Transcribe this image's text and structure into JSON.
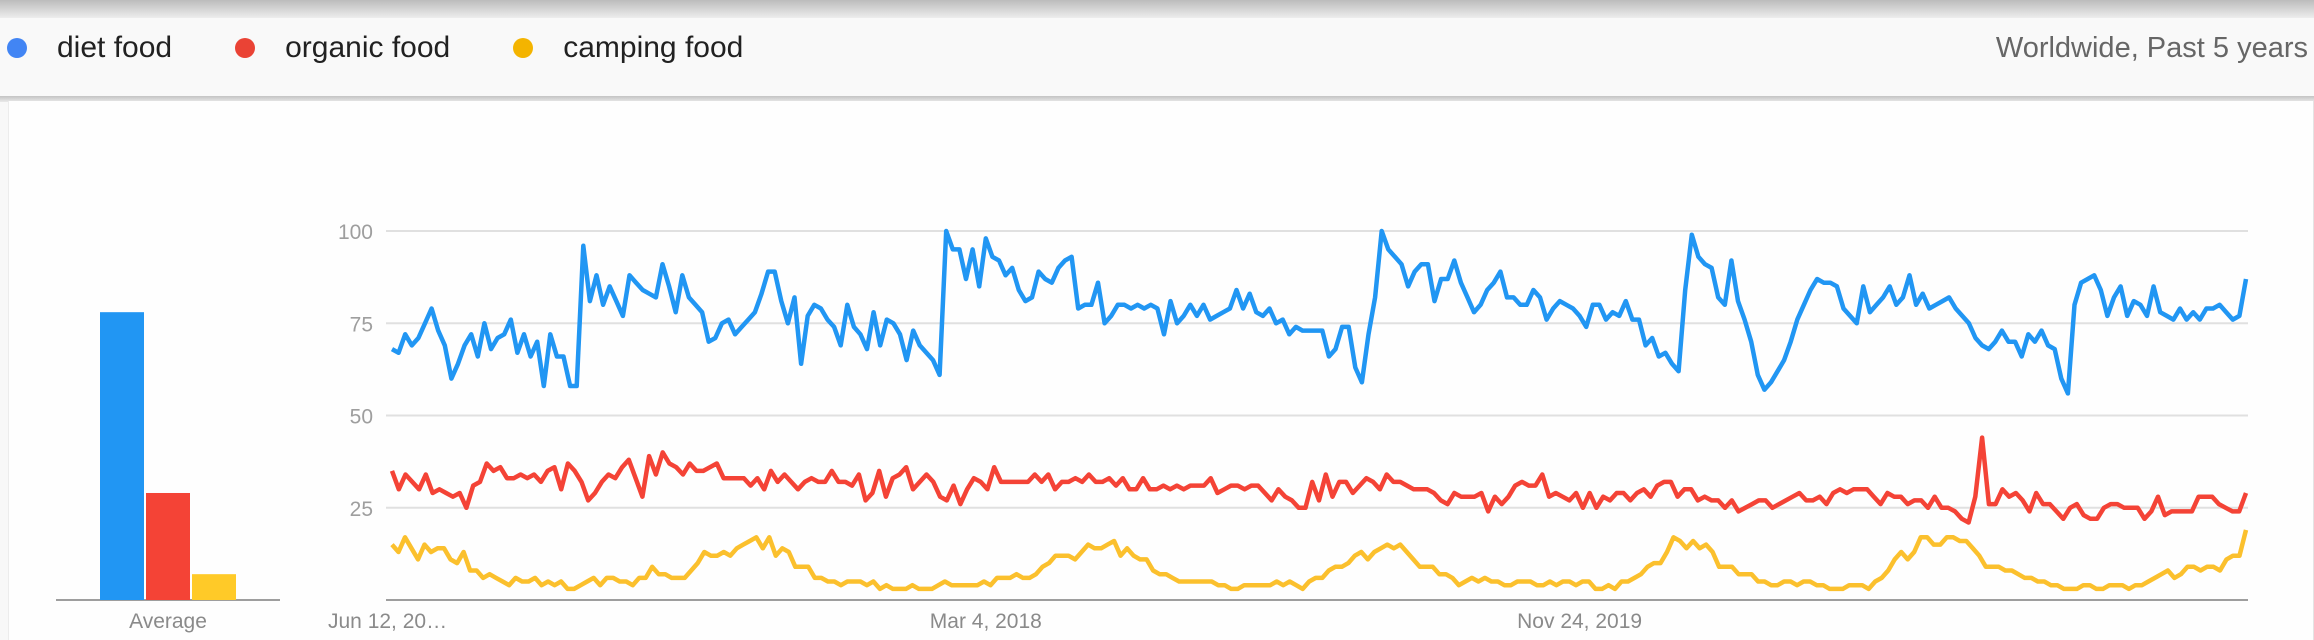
{
  "header": {
    "legend": [
      {
        "label": "diet food",
        "color": "#4285F4"
      },
      {
        "label": "organic food",
        "color": "#EA4335"
      },
      {
        "label": "camping food",
        "color": "#F4B400"
      }
    ],
    "scope": "Worldwide, Past 5 years"
  },
  "average_panel": {
    "label": "Average"
  },
  "chart_data": [
    {
      "type": "bar",
      "title": "Average",
      "categories": [
        "diet food",
        "organic food",
        "camping food"
      ],
      "values": [
        78,
        29,
        7
      ],
      "colors": [
        "#2196F3",
        "#F44336",
        "#FFCA28"
      ],
      "ylim": [
        0,
        100
      ]
    },
    {
      "type": "line",
      "title": "Interest over time",
      "xlabel": "",
      "ylabel": "",
      "ylim": [
        0,
        100
      ],
      "yticks": [
        25,
        50,
        75,
        100
      ],
      "grid": true,
      "legend_position": "top",
      "x_tick_labels": [
        {
          "label": "Jun 12, 20…",
          "index": 0
        },
        {
          "label": "Mar 4, 2018",
          "index": 90
        },
        {
          "label": "Nov 24, 2019",
          "index": 180
        }
      ],
      "x_start": "Jun 12, 2016",
      "x_step": "1 week",
      "series": [
        {
          "name": "diet food",
          "color": "#2196F3",
          "values": [
            68,
            67,
            72,
            69,
            71,
            75,
            79,
            73,
            69,
            60,
            64,
            69,
            72,
            66,
            75,
            68,
            71,
            72,
            76,
            67,
            72,
            66,
            70,
            58,
            72,
            66,
            66,
            58,
            58,
            96,
            81,
            88,
            80,
            85,
            81,
            77,
            88,
            86,
            84,
            83,
            82,
            91,
            85,
            78,
            88,
            82,
            80,
            78,
            70,
            71,
            75,
            76,
            72,
            74,
            76,
            78,
            83,
            89,
            89,
            81,
            75,
            82,
            64,
            77,
            80,
            79,
            76,
            74,
            69,
            80,
            74,
            72,
            68,
            78,
            69,
            76,
            75,
            72,
            65,
            73,
            69,
            67,
            65,
            61,
            100,
            95,
            95,
            87,
            95,
            85,
            98,
            93,
            92,
            88,
            90,
            84,
            81,
            82,
            89,
            87,
            86,
            90,
            92,
            93,
            79,
            80,
            80,
            86,
            75,
            77,
            80,
            80,
            79,
            80,
            79,
            80,
            79,
            72,
            81,
            75,
            77,
            80,
            77,
            80,
            76,
            77,
            78,
            79,
            84,
            79,
            83,
            78,
            77,
            79,
            75,
            76,
            72,
            74,
            73,
            73,
            73,
            73,
            66,
            68,
            74,
            74,
            63,
            59,
            72,
            82,
            100,
            95,
            93,
            91,
            85,
            89,
            91,
            91,
            81,
            87,
            87,
            92,
            86,
            82,
            78,
            80,
            84,
            86,
            89,
            82,
            82,
            80,
            80,
            84,
            82,
            76,
            79,
            81,
            80,
            79,
            77,
            74,
            80,
            80,
            76,
            78,
            77,
            81,
            76,
            76,
            69,
            71,
            66,
            67,
            64,
            62,
            84,
            99,
            93,
            91,
            90,
            82,
            80,
            92,
            81,
            76,
            70,
            61,
            57,
            59,
            62,
            65,
            70,
            76,
            80,
            84,
            87,
            86,
            86,
            85,
            79,
            77,
            75,
            85,
            78,
            80,
            82,
            85,
            80,
            82,
            88,
            80,
            83,
            79,
            80,
            81,
            82,
            79,
            77,
            75,
            71,
            69,
            68,
            70,
            73,
            70,
            70,
            66,
            72,
            70,
            73,
            69,
            68,
            60,
            56,
            80,
            86,
            87,
            88,
            84,
            77,
            82,
            85,
            77,
            81,
            80,
            77,
            85,
            78,
            77,
            76,
            79,
            76,
            78,
            76,
            79,
            79,
            80,
            78,
            76,
            77,
            87
          ]
        },
        {
          "name": "organic food",
          "color": "#F44336",
          "values": [
            35,
            30,
            34,
            32,
            30,
            34,
            29,
            30,
            29,
            28,
            29,
            25,
            31,
            32,
            37,
            35,
            36,
            33,
            33,
            34,
            33,
            34,
            32,
            35,
            36,
            30,
            37,
            35,
            32,
            27,
            29,
            32,
            34,
            33,
            36,
            38,
            33,
            28,
            39,
            34,
            40,
            37,
            36,
            34,
            37,
            35,
            35,
            36,
            37,
            33,
            33,
            33,
            33,
            31,
            33,
            30,
            35,
            32,
            34,
            32,
            30,
            32,
            33,
            32,
            32,
            35,
            32,
            32,
            31,
            34,
            27,
            29,
            35,
            28,
            33,
            34,
            36,
            30,
            32,
            34,
            32,
            28,
            27,
            31,
            26,
            30,
            33,
            32,
            30,
            36,
            32,
            32,
            32,
            32,
            32,
            34,
            32,
            34,
            30,
            32,
            32,
            33,
            32,
            34,
            32,
            32,
            33,
            31,
            33,
            30,
            30,
            33,
            30,
            30,
            31,
            30,
            31,
            30,
            31,
            31,
            31,
            33,
            29,
            30,
            31,
            31,
            30,
            31,
            31,
            29,
            27,
            30,
            28,
            27,
            25,
            25,
            32,
            27,
            34,
            28,
            32,
            32,
            29,
            31,
            33,
            32,
            30,
            34,
            32,
            32,
            31,
            30,
            30,
            30,
            29,
            27,
            26,
            29,
            28,
            28,
            28,
            29,
            24,
            28,
            26,
            28,
            31,
            32,
            31,
            31,
            34,
            28,
            29,
            28,
            27,
            29,
            25,
            29,
            25,
            28,
            27,
            29,
            29,
            27,
            29,
            30,
            28,
            31,
            32,
            32,
            28,
            30,
            30,
            27,
            28,
            27,
            27,
            25,
            27,
            24,
            25,
            26,
            27,
            27,
            25,
            26,
            27,
            28,
            29,
            27,
            27,
            28,
            26,
            29,
            30,
            29,
            30,
            30,
            30,
            28,
            26,
            29,
            28,
            28,
            26,
            27,
            27,
            25,
            28,
            25,
            25,
            24,
            22,
            21,
            28,
            44,
            26,
            26,
            30,
            28,
            29,
            27,
            24,
            29,
            26,
            26,
            24,
            22,
            25,
            26,
            23,
            22,
            22,
            25,
            26,
            26,
            25,
            25,
            25,
            22,
            24,
            28,
            23,
            24,
            24,
            24,
            24,
            28,
            28,
            28,
            26,
            25,
            24,
            24,
            29
          ]
        },
        {
          "name": "camping food",
          "color": "#FBC02D",
          "values": [
            15,
            13,
            17,
            14,
            11,
            15,
            13,
            14,
            14,
            11,
            10,
            13,
            8,
            8,
            6,
            7,
            6,
            5,
            4,
            6,
            5,
            5,
            6,
            4,
            5,
            4,
            5,
            3,
            3,
            4,
            5,
            6,
            4,
            6,
            6,
            5,
            5,
            4,
            6,
            6,
            9,
            7,
            7,
            6,
            6,
            6,
            8,
            10,
            13,
            12,
            12,
            13,
            12,
            14,
            15,
            16,
            17,
            14,
            17,
            12,
            14,
            13,
            9,
            9,
            9,
            6,
            6,
            5,
            5,
            4,
            5,
            5,
            5,
            4,
            5,
            3,
            4,
            3,
            3,
            3,
            4,
            3,
            3,
            3,
            4,
            5,
            4,
            4,
            4,
            4,
            4,
            5,
            4,
            6,
            6,
            6,
            7,
            6,
            6,
            7,
            9,
            10,
            12,
            12,
            12,
            11,
            13,
            15,
            14,
            14,
            15,
            16,
            12,
            14,
            12,
            11,
            11,
            8,
            7,
            7,
            6,
            5,
            5,
            5,
            5,
            5,
            5,
            4,
            4,
            3,
            3,
            4,
            4,
            4,
            4,
            4,
            5,
            4,
            5,
            4,
            3,
            5,
            6,
            6,
            8,
            9,
            9,
            10,
            12,
            13,
            11,
            13,
            14,
            15,
            14,
            15,
            13,
            11,
            9,
            9,
            9,
            7,
            7,
            6,
            4,
            5,
            6,
            5,
            6,
            5,
            5,
            4,
            4,
            5,
            5,
            5,
            4,
            4,
            5,
            4,
            5,
            5,
            4,
            5,
            5,
            3,
            3,
            4,
            3,
            5,
            5,
            6,
            7,
            9,
            10,
            10,
            13,
            17,
            16,
            14,
            16,
            14,
            15,
            13,
            9,
            9,
            9,
            7,
            7,
            7,
            5,
            5,
            4,
            4,
            5,
            5,
            4,
            5,
            5,
            4,
            4,
            3,
            3,
            3,
            4,
            4,
            4,
            3,
            5,
            6,
            8,
            11,
            13,
            11,
            13,
            17,
            17,
            15,
            15,
            17,
            17,
            16,
            16,
            14,
            12,
            9,
            9,
            9,
            8,
            8,
            7,
            6,
            6,
            5,
            5,
            4,
            4,
            3,
            3,
            3,
            4,
            4,
            3,
            3,
            4,
            4,
            4,
            3,
            4,
            4,
            5,
            6,
            7,
            8,
            6,
            7,
            9,
            9,
            8,
            9,
            9,
            8,
            11,
            12,
            12,
            19
          ]
        }
      ]
    }
  ]
}
